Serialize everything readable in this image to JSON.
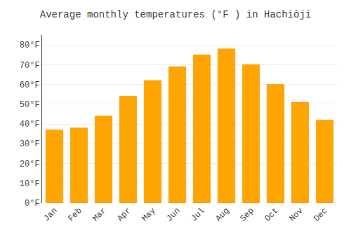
{
  "chart_data": {
    "type": "bar",
    "title": "Average monthly temperatures (°F ) in Hachiōji",
    "categories": [
      "Jan",
      "Feb",
      "Mar",
      "Apr",
      "May",
      "Jun",
      "Jul",
      "Aug",
      "Sep",
      "Oct",
      "Nov",
      "Dec"
    ],
    "values": [
      37,
      38,
      44,
      54,
      62,
      69,
      75,
      78,
      70,
      60,
      51,
      42
    ],
    "color": "#FFA500",
    "ylim": [
      0,
      85
    ],
    "yticks": [
      {
        "value": 0,
        "label": "0°F"
      },
      {
        "value": 10,
        "label": "10°F"
      },
      {
        "value": 20,
        "label": "20°F"
      },
      {
        "value": 30,
        "label": "30°F"
      },
      {
        "value": 40,
        "label": "40°F"
      },
      {
        "value": 50,
        "label": "50°F"
      },
      {
        "value": 60,
        "label": "60°F"
      },
      {
        "value": 70,
        "label": "70°F"
      },
      {
        "value": 80,
        "label": "80°F"
      }
    ],
    "grid": true
  }
}
